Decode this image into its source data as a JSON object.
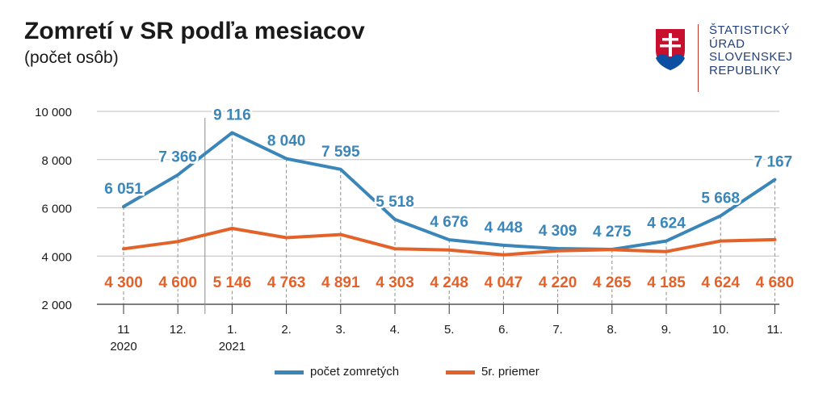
{
  "header": {
    "title": "Zomretí v SR podľa mesiacov",
    "subtitle": "(počet osôb)"
  },
  "logo": {
    "lines": [
      "ŠTATISTICKÝ",
      "ÚRAD",
      "SLOVENSKEJ",
      "REPUBLIKY"
    ],
    "icon": "slovak-coat-of-arms-icon"
  },
  "colors": {
    "deaths": "#3b86b9",
    "average": "#e2622a",
    "axis": "#333333",
    "grid": "#bfbfbf"
  },
  "chart_data": {
    "type": "line",
    "title": "Zomretí v SR podľa mesiacov",
    "subtitle": "(počet osôb)",
    "categories": [
      "11",
      "12.",
      "1.",
      "2.",
      "3.",
      "4.",
      "5.",
      "6.",
      "7.",
      "8.",
      "9.",
      "10.",
      "11."
    ],
    "year_labels": [
      {
        "index": 0,
        "label": "2020"
      },
      {
        "index": 2,
        "label": "2021"
      }
    ],
    "series": [
      {
        "name": "počet zomretých",
        "values": [
          6051,
          7366,
          9116,
          8040,
          7595,
          5518,
          4676,
          4448,
          4309,
          4275,
          4624,
          5668,
          7167
        ],
        "labels": [
          "6 051",
          "7 366",
          "9 116",
          "8 040",
          "7 595",
          "5 518",
          "4 676",
          "4 448",
          "4 309",
          "4 275",
          "4 624",
          "5 668",
          "7 167"
        ]
      },
      {
        "name": "5r. priemer",
        "values": [
          4300,
          4600,
          5146,
          4763,
          4891,
          4303,
          4248,
          4047,
          4220,
          4265,
          4185,
          4624,
          4680
        ],
        "labels": [
          "4 300",
          "4 600",
          "5 146",
          "4 763",
          "4 891",
          "4 303",
          "4 248",
          "4 047",
          "4 220",
          "4 265",
          "4 185",
          "4 624",
          "4 680"
        ]
      }
    ],
    "y_ticks": [
      2000,
      4000,
      6000,
      8000,
      10000
    ],
    "y_tick_labels": [
      "2 000",
      "4 000",
      "6 000",
      "8 000",
      "10 000"
    ],
    "ylim": [
      2000,
      10000
    ],
    "grid": true,
    "legend_position": "bottom"
  }
}
